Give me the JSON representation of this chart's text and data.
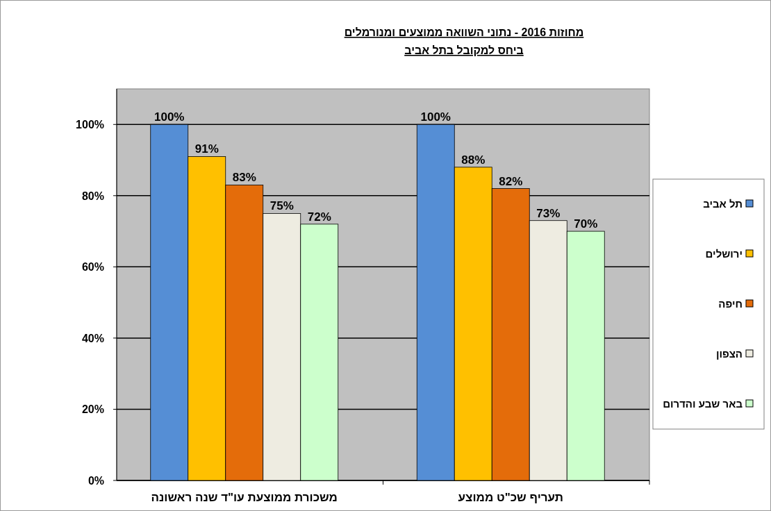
{
  "chart_data": {
    "type": "bar",
    "title": "מחוזות 2016 - נתוני השוואה ממוצעים ומנורמלים",
    "subtitle": "ביחס למקובל בתל אביב",
    "categories": [
      "משכורת ממוצעת עו\"ד שנה ראשונה",
      "תעריף שכ\"ט ממוצע"
    ],
    "series": [
      {
        "name": "תל אביב",
        "color": "#558ed5",
        "values": [
          100,
          100
        ],
        "value_labels": [
          "100%",
          "100%"
        ]
      },
      {
        "name": "ירושלים",
        "color": "#ffc000",
        "values": [
          91,
          88
        ],
        "value_labels": [
          "91%",
          "88%"
        ]
      },
      {
        "name": "חיפה",
        "color": "#e46c0a",
        "values": [
          83,
          82
        ],
        "value_labels": [
          "83%",
          "82%"
        ]
      },
      {
        "name": "הצפון",
        "color": "#eeece1",
        "values": [
          75,
          73
        ],
        "value_labels": [
          "75%",
          "73%"
        ]
      },
      {
        "name": "באר שבע והדרום",
        "color": "#ccffcc",
        "values": [
          72,
          70
        ],
        "value_labels": [
          "72%",
          "70%"
        ]
      }
    ],
    "ylim": [
      0,
      110
    ],
    "yticks": [
      {
        "value": 0,
        "label": "0%"
      },
      {
        "value": 20,
        "label": "20%"
      },
      {
        "value": 40,
        "label": "40%"
      },
      {
        "value": 60,
        "label": "60%"
      },
      {
        "value": 80,
        "label": "80%"
      },
      {
        "value": 100,
        "label": "100%"
      }
    ],
    "grid": "y",
    "legend": "right"
  }
}
